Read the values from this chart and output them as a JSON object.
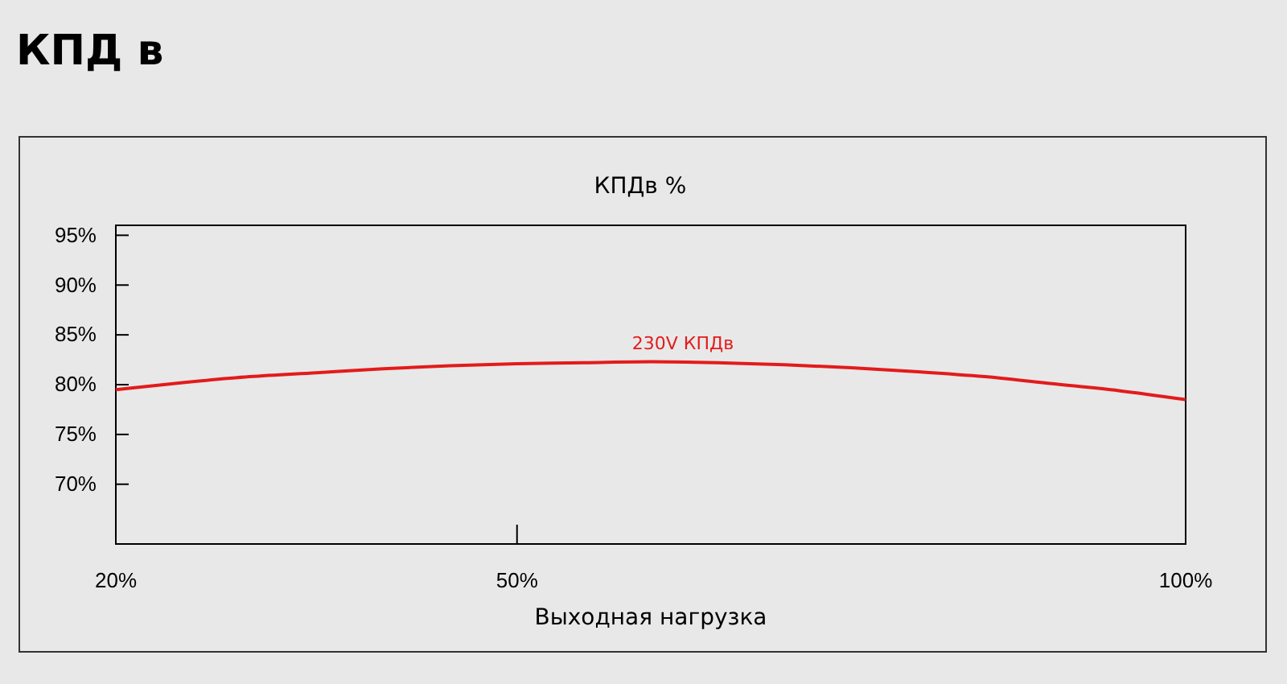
{
  "chart_data": {
    "type": "line",
    "title": "КПД в",
    "subtitle": "КПДв %",
    "xlabel": "Выходная нагрузка",
    "x": [
      20,
      25,
      30,
      35,
      40,
      45,
      50,
      55,
      60,
      65,
      70,
      75,
      80,
      85,
      90,
      95,
      100
    ],
    "series": [
      {
        "name": "230V КПДв",
        "color": "#e31b1b",
        "values": [
          79.5,
          80.2,
          80.8,
          81.2,
          81.6,
          81.9,
          82.1,
          82.2,
          82.3,
          82.2,
          82.0,
          81.7,
          81.3,
          80.8,
          80.1,
          79.4,
          78.5
        ]
      }
    ],
    "xlim": [
      20,
      100
    ],
    "xticks": [
      {
        "value": 20,
        "label": "20%"
      },
      {
        "value": 50,
        "label": "50%"
      },
      {
        "value": 100,
        "label": "100%"
      }
    ],
    "ylim": [
      64,
      96
    ],
    "yticks": [
      {
        "value": 70,
        "label": "70%"
      },
      {
        "value": 75,
        "label": "75%"
      },
      {
        "value": 80,
        "label": "80%"
      },
      {
        "value": 85,
        "label": "85%"
      },
      {
        "value": 90,
        "label": "90%"
      },
      {
        "value": 95,
        "label": "95%"
      }
    ],
    "grid": false,
    "legend": false,
    "marker": "none",
    "line_style": "solid"
  }
}
